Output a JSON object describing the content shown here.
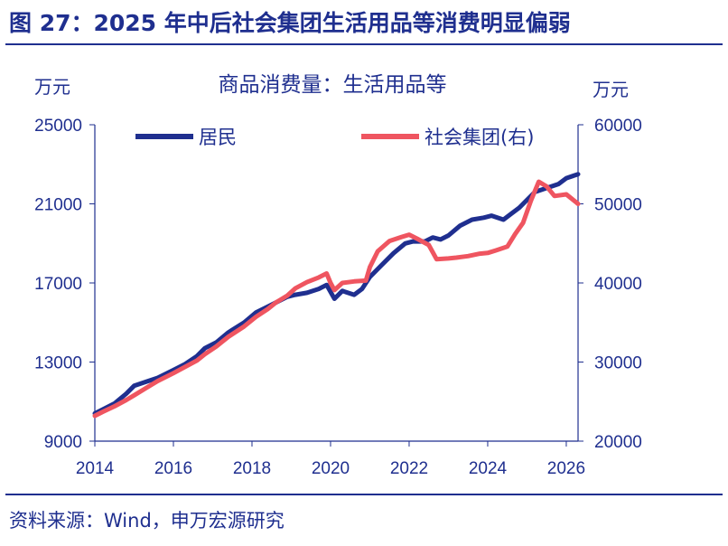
{
  "figure": {
    "title": "图 27：2025 年中后社会集团生活用品等消费明显偏弱",
    "source": "资料来源：Wind，申万宏源研究"
  },
  "colors": {
    "series1": "#1f2f8f",
    "series2": "#ef5560",
    "axis": "#1f2f8f"
  },
  "chart_data": {
    "type": "line",
    "title": "商品消费量：生活用品等",
    "left_unit": "万元",
    "right_unit": "万元",
    "x_ticks": [
      "2014",
      "2016",
      "2018",
      "2020",
      "2022",
      "2024",
      "2026"
    ],
    "x_range": [
      2014,
      2026.3
    ],
    "y_left": {
      "min": 9000,
      "max": 25000,
      "ticks": [
        "25000",
        "21000",
        "17000",
        "13000",
        "9000"
      ]
    },
    "y_right": {
      "min": 20000,
      "max": 60000,
      "ticks": [
        "60000",
        "50000",
        "40000",
        "30000",
        "20000"
      ]
    },
    "legend_position": "top",
    "series": [
      {
        "name": "居民",
        "axis": "left",
        "x": [
          2014,
          2014.2,
          2014.5,
          2014.8,
          2015,
          2015.3,
          2015.6,
          2016,
          2016.3,
          2016.6,
          2016.8,
          2017.1,
          2017.4,
          2017.8,
          2018.1,
          2018.4,
          2018.6,
          2018.9,
          2019.1,
          2019.4,
          2019.7,
          2019.9,
          2020.1,
          2020.3,
          2020.6,
          2020.8,
          2021,
          2021.3,
          2021.6,
          2021.9,
          2022.1,
          2022.4,
          2022.6,
          2022.8,
          2023,
          2023.3,
          2023.6,
          2023.9,
          2024.1,
          2024.4,
          2024.6,
          2024.8,
          2025,
          2025.2,
          2025.5,
          2025.8,
          2026,
          2026.3
        ],
        "values": [
          10400,
          10600,
          10900,
          11400,
          11800,
          12000,
          12200,
          12600,
          12900,
          13300,
          13700,
          14000,
          14500,
          15000,
          15500,
          15800,
          16000,
          16300,
          16400,
          16500,
          16700,
          16900,
          16200,
          16600,
          16400,
          16700,
          17300,
          17900,
          18500,
          19000,
          19100,
          19100,
          19300,
          19200,
          19400,
          19900,
          20200,
          20300,
          20400,
          20200,
          20500,
          20800,
          21200,
          21600,
          21800,
          22000,
          22300,
          22500
        ]
      },
      {
        "name": "社会集团(右)",
        "axis": "right",
        "x": [
          2014,
          2014.2,
          2014.5,
          2014.8,
          2015,
          2015.3,
          2015.6,
          2016,
          2016.3,
          2016.6,
          2016.8,
          2017.1,
          2017.4,
          2017.8,
          2018.1,
          2018.4,
          2018.6,
          2018.9,
          2019.1,
          2019.4,
          2019.7,
          2019.9,
          2020,
          2020.1,
          2020.3,
          2020.6,
          2020.9,
          2021,
          2021.2,
          2021.5,
          2021.8,
          2022,
          2022.2,
          2022.5,
          2022.7,
          2023,
          2023.2,
          2023.5,
          2023.8,
          2024,
          2024.2,
          2024.5,
          2024.7,
          2024.9,
          2025.1,
          2025.3,
          2025.5,
          2025.7,
          2026,
          2026.3
        ],
        "values": [
          23200,
          23700,
          24400,
          25200,
          25800,
          26700,
          27600,
          28600,
          29400,
          30200,
          31000,
          32000,
          33200,
          34500,
          35700,
          36700,
          37500,
          38400,
          39300,
          40100,
          40700,
          41200,
          40000,
          39100,
          40000,
          40200,
          40300,
          42000,
          44000,
          45300,
          45800,
          46100,
          45600,
          44800,
          43000,
          43100,
          43200,
          43400,
          43700,
          43800,
          44100,
          44600,
          46200,
          47600,
          50400,
          52800,
          52200,
          51000,
          51200,
          50000
        ]
      }
    ]
  }
}
